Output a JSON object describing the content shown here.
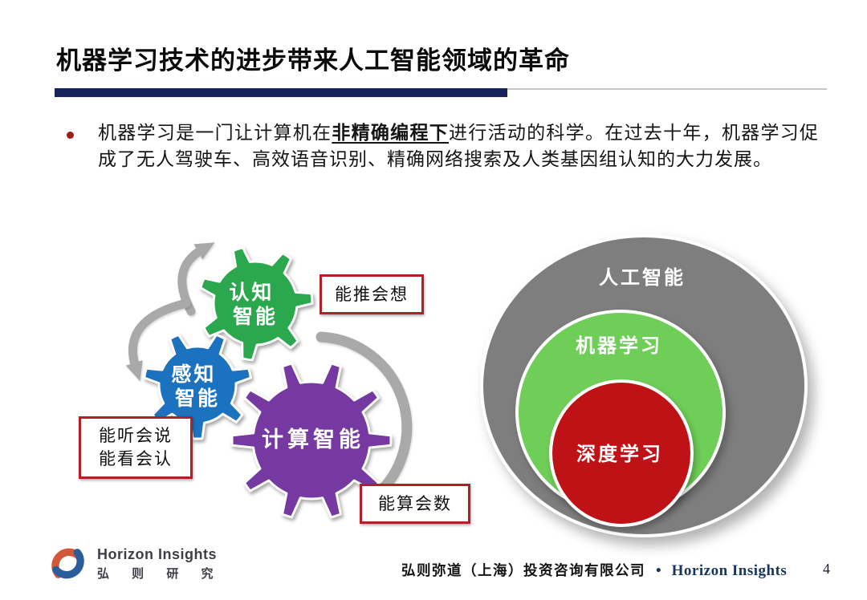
{
  "title": "机器学习技术的进步带来人工智能领域的革命",
  "paragraph": {
    "pre": "机器学习是一门让计算机在",
    "emphasis": "非精确编程下",
    "post": "进行活动的科学。在过去十年，机器学习促成了无人驾驶车、高效语音识别、精确网络搜索及人类基因组认知的大力发展。"
  },
  "gear_diagram": {
    "gears": [
      {
        "name": "cognitive-intelligence",
        "lines": [
          "认知",
          "智能"
        ],
        "color": "#2BA84E"
      },
      {
        "name": "perceptual-intelligence",
        "lines": [
          "感知",
          "智能"
        ],
        "color": "#1B72BE"
      },
      {
        "name": "computational-intelligence",
        "lines": [
          "计算智能"
        ],
        "color": "#7639A2"
      }
    ],
    "callouts": [
      {
        "name": "cognitive-callout",
        "lines": [
          "能推会想"
        ]
      },
      {
        "name": "perceptual-callout",
        "lines": [
          "能听会说",
          "能看会认"
        ]
      },
      {
        "name": "computational-callout",
        "lines": [
          "能算会数"
        ]
      }
    ],
    "arrow_color": "#A9A9A9",
    "callout_border_color": "#AF2126"
  },
  "venn_diagram": {
    "outer": {
      "label": "人工智能",
      "color": "#7E7E7E"
    },
    "middle": {
      "label": "机器学习",
      "color": "#6FCE58"
    },
    "inner": {
      "label": "深度学习",
      "color": "#BE1217"
    }
  },
  "footer": {
    "logo_title": "Horizon Insights",
    "logo_subtitle": "弘 则 研 究",
    "company": "弘则弥道（上海）投资咨询有限公司",
    "separator": "•",
    "brand": "Horizon Insights",
    "page_number": "4"
  },
  "colors": {
    "title_bar": "#16245E",
    "title_rule_line": "#C6C6C6",
    "bullet_dot": "#9E1B1B",
    "footer_brand": "#17365D",
    "logo_orange": "#D2583A",
    "logo_blue": "#2B5C9C"
  }
}
